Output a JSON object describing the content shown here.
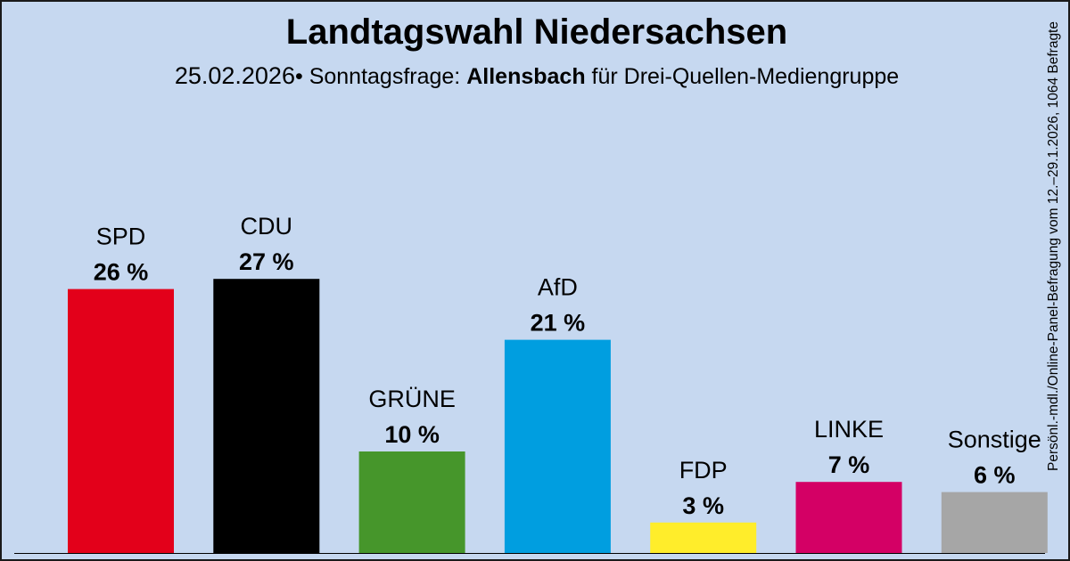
{
  "header": {
    "title": "Landtagswahl Niedersachsen",
    "date": "25.02.2026",
    "bullet": "•",
    "poll_label": "Sonntagsfrage:",
    "institute": "Allensbach",
    "client": "für Drei-Quellen-Mediengruppe"
  },
  "side_note": "Persönl.-mdl./Online-Panel-Befragung vom 12.–29.1.2026, 1064 Befragte",
  "colors": {
    "background": "#c6d8f0",
    "SPD": "#e3001a",
    "CDU": "#000000",
    "GRÜNE": "#46962b",
    "AfD": "#009ee0",
    "FDP": "#ffed2b",
    "LINKE": "#d40065",
    "Sonstige": "#a6a6a6"
  },
  "chart_data": {
    "type": "bar",
    "title": "Landtagswahl Niedersachsen",
    "categories": [
      "SPD",
      "CDU",
      "GRÜNE",
      "AfD",
      "FDP",
      "LINKE",
      "Sonstige"
    ],
    "values": [
      26,
      27,
      10,
      21,
      3,
      7,
      6
    ],
    "value_labels": [
      "26 %",
      "27 %",
      "10 %",
      "21 %",
      "3 %",
      "7 %",
      "6 %"
    ],
    "unit": "%",
    "ylim": [
      0,
      30
    ],
    "grid": false,
    "legend": "none"
  }
}
